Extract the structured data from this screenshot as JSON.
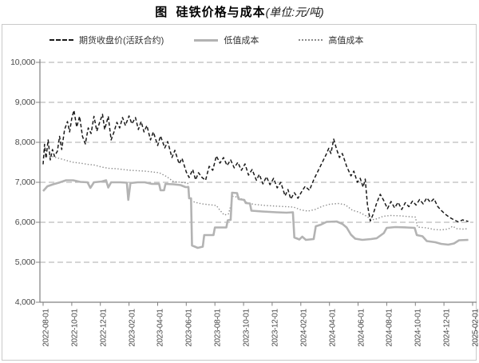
{
  "title": {
    "main": "图  硅铁价格与成本",
    "unit": "(单位:元/吨)"
  },
  "legend": {
    "items": [
      {
        "id": "futures-close",
        "label": "期货收盘价(活跃合约)",
        "style": "dashed",
        "color": "#1a1a1a"
      },
      {
        "id": "low-cost",
        "label": "低值成本",
        "style": "solid",
        "color": "#b3b3b3"
      },
      {
        "id": "high-cost",
        "label": "高值成本",
        "style": "dotted",
        "color": "#8c8c8c"
      }
    ]
  },
  "chart_data": {
    "type": "line",
    "title": "图 硅铁价格与成本",
    "unit": "元/吨",
    "grid": "horizontal-dashed",
    "legend_position": "top",
    "x_unit": "months_since_2022-08-01",
    "x_axis": {
      "months_span": 30,
      "tick_labels": [
        "2022-08-01",
        "2022-10-01",
        "2022-12-01",
        "2023-02-01",
        "2023-04-01",
        "2023-06-01",
        "2023-08-01",
        "2023-10-01",
        "2023-12-01",
        "2024-02-01",
        "2024-04-01",
        "2024-06-01",
        "2024-08-01",
        "2024-10-01",
        "2024-12-01",
        "2025-02-01"
      ]
    },
    "y_axis": {
      "min": 4000,
      "max": 10000,
      "step": 1000,
      "tick_labels": [
        "4,000",
        "5,000",
        "6,000",
        "7,000",
        "8,000",
        "9,000",
        "10,000"
      ]
    },
    "series": [
      {
        "id": "futures-close",
        "name": "期货收盘价(活跃合约)",
        "style": "dashed",
        "color": "#1a1a1a",
        "points": [
          [
            0,
            7450
          ],
          [
            0.1,
            7950
          ],
          [
            0.2,
            7600
          ],
          [
            0.35,
            8060
          ],
          [
            0.5,
            7560
          ],
          [
            0.65,
            7820
          ],
          [
            0.8,
            7650
          ],
          [
            1.0,
            7780
          ],
          [
            1.15,
            8150
          ],
          [
            1.3,
            7820
          ],
          [
            1.5,
            8320
          ],
          [
            1.7,
            8520
          ],
          [
            1.85,
            8260
          ],
          [
            2.0,
            8600
          ],
          [
            2.15,
            8800
          ],
          [
            2.35,
            8380
          ],
          [
            2.55,
            8650
          ],
          [
            2.75,
            8150
          ],
          [
            2.95,
            7960
          ],
          [
            3.15,
            8360
          ],
          [
            3.35,
            8220
          ],
          [
            3.55,
            8650
          ],
          [
            3.75,
            8280
          ],
          [
            3.95,
            8500
          ],
          [
            4.15,
            8700
          ],
          [
            4.3,
            8320
          ],
          [
            4.55,
            8650
          ],
          [
            4.75,
            8060
          ],
          [
            4.95,
            8260
          ],
          [
            5.15,
            8500
          ],
          [
            5.35,
            8360
          ],
          [
            5.55,
            8620
          ],
          [
            5.75,
            8420
          ],
          [
            6.0,
            8660
          ],
          [
            6.2,
            8460
          ],
          [
            6.45,
            8620
          ],
          [
            6.65,
            8320
          ],
          [
            6.85,
            8520
          ],
          [
            7.05,
            8260
          ],
          [
            7.25,
            8420
          ],
          [
            7.5,
            8060
          ],
          [
            7.7,
            8260
          ],
          [
            8.0,
            7920
          ],
          [
            8.2,
            8160
          ],
          [
            8.5,
            7860
          ],
          [
            8.7,
            8020
          ],
          [
            9.0,
            7620
          ],
          [
            9.2,
            7800
          ],
          [
            9.5,
            7460
          ],
          [
            9.7,
            7600
          ],
          [
            10.0,
            7260
          ],
          [
            10.2,
            7120
          ],
          [
            10.45,
            7320
          ],
          [
            10.65,
            7060
          ],
          [
            10.85,
            7240
          ],
          [
            11.1,
            7120
          ],
          [
            11.35,
            7050
          ],
          [
            11.6,
            7400
          ],
          [
            11.85,
            7300
          ],
          [
            12.1,
            7660
          ],
          [
            12.35,
            7480
          ],
          [
            12.6,
            7620
          ],
          [
            12.85,
            7420
          ],
          [
            13.1,
            7560
          ],
          [
            13.35,
            7360
          ],
          [
            13.6,
            7500
          ],
          [
            13.85,
            7300
          ],
          [
            14.1,
            7460
          ],
          [
            14.35,
            7180
          ],
          [
            14.6,
            7320
          ],
          [
            14.9,
            7050
          ],
          [
            15.1,
            7200
          ],
          [
            15.35,
            6960
          ],
          [
            15.6,
            7140
          ],
          [
            15.85,
            6940
          ],
          [
            16.1,
            7100
          ],
          [
            16.35,
            6860
          ],
          [
            16.6,
            7000
          ],
          [
            16.9,
            6660
          ],
          [
            17.1,
            6820
          ],
          [
            17.3,
            6580
          ],
          [
            17.55,
            6740
          ],
          [
            17.8,
            6600
          ],
          [
            18.05,
            6760
          ],
          [
            18.3,
            6900
          ],
          [
            18.6,
            6800
          ],
          [
            18.9,
            7060
          ],
          [
            19.2,
            7280
          ],
          [
            19.5,
            7500
          ],
          [
            19.75,
            7680
          ],
          [
            19.95,
            7850
          ],
          [
            20.1,
            7720
          ],
          [
            20.3,
            8080
          ],
          [
            20.5,
            7830
          ],
          [
            20.7,
            7620
          ],
          [
            20.9,
            7720
          ],
          [
            21.2,
            7400
          ],
          [
            21.5,
            7160
          ],
          [
            21.7,
            7280
          ],
          [
            21.95,
            7000
          ],
          [
            22.15,
            7100
          ],
          [
            22.35,
            6880
          ],
          [
            22.5,
            7080
          ],
          [
            22.65,
            6450
          ],
          [
            22.85,
            6030
          ],
          [
            23.05,
            6200
          ],
          [
            23.3,
            6480
          ],
          [
            23.55,
            6700
          ],
          [
            23.8,
            6540
          ],
          [
            24.05,
            6340
          ],
          [
            24.3,
            6520
          ],
          [
            24.55,
            6360
          ],
          [
            24.8,
            6500
          ],
          [
            25.05,
            6320
          ],
          [
            25.3,
            6490
          ],
          [
            25.55,
            6390
          ],
          [
            25.8,
            6530
          ],
          [
            26.05,
            6430
          ],
          [
            26.3,
            6570
          ],
          [
            26.55,
            6460
          ],
          [
            26.8,
            6610
          ],
          [
            27.05,
            6500
          ],
          [
            27.3,
            6590
          ],
          [
            27.55,
            6400
          ],
          [
            27.8,
            6300
          ],
          [
            28.1,
            6200
          ],
          [
            28.4,
            6120
          ],
          [
            28.7,
            6060
          ],
          [
            29.0,
            6010
          ],
          [
            29.3,
            6060
          ],
          [
            29.7,
            6020
          ]
        ]
      },
      {
        "id": "low-cost",
        "name": "低值成本",
        "style": "solid",
        "color": "#b3b3b3",
        "points": [
          [
            0,
            6780
          ],
          [
            0.3,
            6900
          ],
          [
            0.7,
            6950
          ],
          [
            1.1,
            6990
          ],
          [
            1.6,
            7050
          ],
          [
            2.1,
            7050
          ],
          [
            2.6,
            7010
          ],
          [
            3.1,
            7000
          ],
          [
            3.3,
            6860
          ],
          [
            3.55,
            7000
          ],
          [
            4.1,
            7020
          ],
          [
            4.4,
            7050
          ],
          [
            4.55,
            6870
          ],
          [
            4.75,
            7000
          ],
          [
            5.4,
            7000
          ],
          [
            5.85,
            6990
          ],
          [
            5.95,
            6560
          ],
          [
            6.1,
            6980
          ],
          [
            6.6,
            7000
          ],
          [
            7.1,
            7000
          ],
          [
            7.6,
            6960
          ],
          [
            8.1,
            6960
          ],
          [
            8.2,
            6800
          ],
          [
            8.45,
            6800
          ],
          [
            8.55,
            6960
          ],
          [
            9.1,
            6950
          ],
          [
            9.6,
            6930
          ],
          [
            9.95,
            6880
          ],
          [
            10.15,
            6880
          ],
          [
            10.2,
            6600
          ],
          [
            10.33,
            6600
          ],
          [
            10.4,
            5420
          ],
          [
            10.8,
            5360
          ],
          [
            11.15,
            5390
          ],
          [
            11.25,
            5680
          ],
          [
            11.9,
            5680
          ],
          [
            12.0,
            5870
          ],
          [
            12.8,
            5870
          ],
          [
            12.9,
            6050
          ],
          [
            13.1,
            6060
          ],
          [
            13.2,
            6740
          ],
          [
            13.55,
            6730
          ],
          [
            13.65,
            6580
          ],
          [
            14.05,
            6560
          ],
          [
            14.15,
            6480
          ],
          [
            14.45,
            6470
          ],
          [
            14.55,
            6290
          ],
          [
            15.3,
            6270
          ],
          [
            16.3,
            6250
          ],
          [
            17.0,
            6240
          ],
          [
            17.45,
            6250
          ],
          [
            17.55,
            5620
          ],
          [
            17.9,
            5570
          ],
          [
            18.1,
            5640
          ],
          [
            18.35,
            5560
          ],
          [
            18.9,
            5580
          ],
          [
            19.05,
            5900
          ],
          [
            19.4,
            5940
          ],
          [
            19.8,
            6010
          ],
          [
            20.5,
            6020
          ],
          [
            20.9,
            5960
          ],
          [
            21.2,
            5870
          ],
          [
            21.5,
            5690
          ],
          [
            21.8,
            5590
          ],
          [
            22.3,
            5560
          ],
          [
            22.9,
            5580
          ],
          [
            23.3,
            5600
          ],
          [
            23.8,
            5730
          ],
          [
            24.0,
            5860
          ],
          [
            24.6,
            5880
          ],
          [
            25.4,
            5870
          ],
          [
            25.95,
            5860
          ],
          [
            26.1,
            5680
          ],
          [
            26.5,
            5650
          ],
          [
            26.8,
            5530
          ],
          [
            27.4,
            5500
          ],
          [
            27.8,
            5460
          ],
          [
            28.3,
            5440
          ],
          [
            28.7,
            5470
          ],
          [
            29.05,
            5550
          ],
          [
            29.7,
            5560
          ]
        ]
      },
      {
        "id": "high-cost",
        "name": "高值成本",
        "style": "dotted",
        "color": "#8c8c8c",
        "points": [
          [
            0,
            7660
          ],
          [
            0.6,
            7650
          ],
          [
            1.1,
            7600
          ],
          [
            1.6,
            7550
          ],
          [
            2.1,
            7500
          ],
          [
            2.6,
            7480
          ],
          [
            3.1,
            7450
          ],
          [
            3.6,
            7430
          ],
          [
            4.1,
            7380
          ],
          [
            4.6,
            7350
          ],
          [
            5.1,
            7340
          ],
          [
            5.6,
            7320
          ],
          [
            6.1,
            7300
          ],
          [
            6.6,
            7290
          ],
          [
            7.1,
            7280
          ],
          [
            7.6,
            7260
          ],
          [
            8.1,
            7240
          ],
          [
            8.6,
            7150
          ],
          [
            9.1,
            7020
          ],
          [
            9.6,
            7000
          ],
          [
            10.1,
            6980
          ],
          [
            10.25,
            6560
          ],
          [
            10.6,
            6500
          ],
          [
            11.1,
            6460
          ],
          [
            11.6,
            6440
          ],
          [
            12.1,
            6420
          ],
          [
            12.35,
            6300
          ],
          [
            12.65,
            6180
          ],
          [
            12.95,
            6210
          ],
          [
            13.1,
            6400
          ],
          [
            13.25,
            6650
          ],
          [
            13.7,
            6620
          ],
          [
            14.2,
            6500
          ],
          [
            14.7,
            6450
          ],
          [
            15.5,
            6420
          ],
          [
            16.5,
            6400
          ],
          [
            17.5,
            6380
          ],
          [
            18.0,
            6310
          ],
          [
            18.5,
            6280
          ],
          [
            19.0,
            6320
          ],
          [
            19.5,
            6400
          ],
          [
            20.0,
            6450
          ],
          [
            20.6,
            6470
          ],
          [
            21.1,
            6440
          ],
          [
            21.6,
            6300
          ],
          [
            22.1,
            6250
          ],
          [
            22.6,
            6150
          ],
          [
            22.95,
            6060
          ],
          [
            23.35,
            6090
          ],
          [
            23.75,
            6150
          ],
          [
            24.3,
            6170
          ],
          [
            25.0,
            6160
          ],
          [
            25.6,
            6140
          ],
          [
            26.0,
            6130
          ],
          [
            26.15,
            5880
          ],
          [
            26.8,
            5860
          ],
          [
            27.3,
            5820
          ],
          [
            27.8,
            5810
          ],
          [
            28.3,
            5830
          ],
          [
            28.6,
            5900
          ],
          [
            28.9,
            5840
          ],
          [
            29.3,
            5830
          ],
          [
            29.7,
            5840
          ]
        ]
      }
    ]
  }
}
